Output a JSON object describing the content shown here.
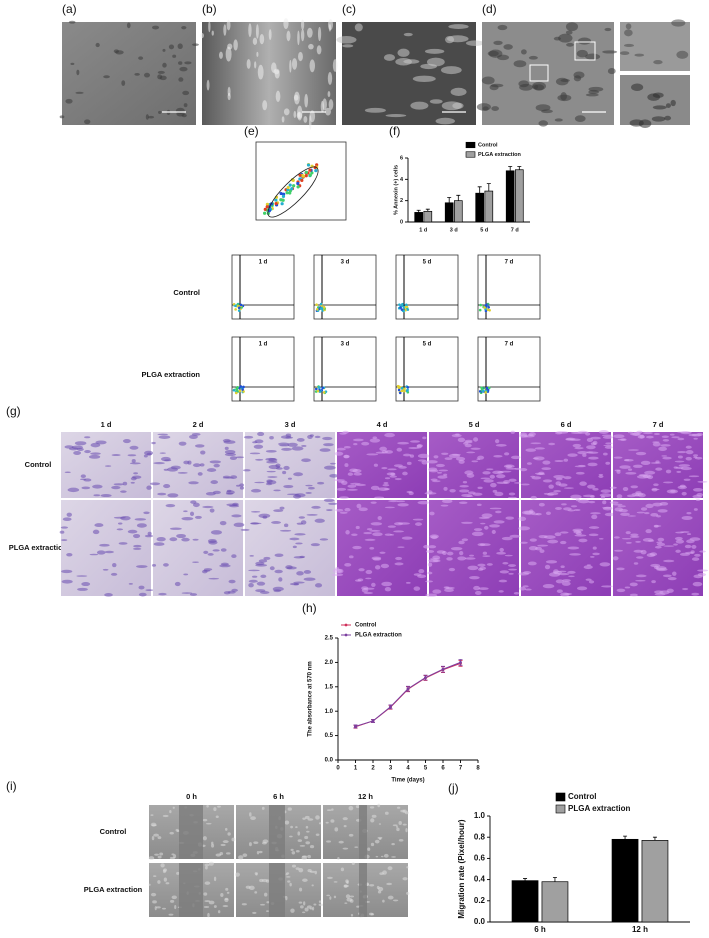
{
  "panel_labels": [
    "(a)",
    "(b)",
    "(c)",
    "(d)",
    "(e)",
    "(f)",
    "(g)",
    "(h)",
    "(i)",
    "(j)"
  ],
  "cytometry": {
    "columns": [
      "1 d",
      "3 d",
      "5 d",
      "7 d"
    ],
    "rows": [
      "Control",
      "PLGA extraction"
    ]
  },
  "crystal_violet": {
    "columns": [
      "1 d",
      "2 d",
      "3 d",
      "4 d",
      "5 d",
      "6 d",
      "7 d"
    ],
    "rows": [
      "Control",
      "PLGA extraction"
    ]
  },
  "scratch": {
    "columns": [
      "0 h",
      "6 h",
      "12 h"
    ],
    "rows": [
      "Control",
      "PLGA extraction"
    ]
  },
  "chart_data": [
    {
      "type": "bar",
      "y_label": "% Annexin (+) cells",
      "categories": [
        "1 d",
        "3 d",
        "5 d",
        "7 d"
      ],
      "series": [
        {
          "name": "Control",
          "color": "#000000",
          "values": [
            0.9,
            1.8,
            2.7,
            4.8
          ],
          "errors": [
            0.2,
            0.5,
            0.6,
            0.4
          ]
        },
        {
          "name": "PLGA extraction",
          "color": "#a0a0a0",
          "values": [
            1.0,
            2.0,
            2.9,
            4.9
          ],
          "errors": [
            0.2,
            0.5,
            0.7,
            0.3
          ]
        }
      ],
      "ylim": [
        0,
        6
      ],
      "yticks": [
        0,
        2,
        4,
        6
      ]
    },
    {
      "type": "line",
      "x_label": "Time (days)",
      "y_label": "The absorbance at 570 nm",
      "x": [
        1,
        2,
        3,
        4,
        5,
        6,
        7
      ],
      "series": [
        {
          "name": "Control",
          "color": "#d0305a",
          "values": [
            0.68,
            0.8,
            1.08,
            1.45,
            1.68,
            1.85,
            1.98
          ],
          "errors": [
            0.03,
            0.03,
            0.04,
            0.05,
            0.05,
            0.06,
            0.06
          ]
        },
        {
          "name": "PLGA extraction",
          "color": "#7b3fa0",
          "values": [
            0.69,
            0.8,
            1.09,
            1.46,
            1.69,
            1.86,
            2.0
          ],
          "errors": [
            0.03,
            0.03,
            0.04,
            0.05,
            0.05,
            0.06,
            0.06
          ]
        }
      ],
      "xlim": [
        0,
        8
      ],
      "xticks": [
        0,
        1,
        2,
        3,
        4,
        5,
        6,
        7,
        8
      ],
      "ylim": [
        0,
        2.5
      ],
      "yticks": [
        {
          "value": 0,
          "label": "0.0"
        },
        0.5,
        {
          "value": 1,
          "label": "1.0"
        },
        1.5,
        {
          "value": 2,
          "label": "2.0"
        },
        2.5
      ]
    },
    {
      "type": "bar",
      "y_label": "Migration rate (Pixel/hour)",
      "categories": [
        "6 h",
        "12 h"
      ],
      "series": [
        {
          "name": "Control",
          "color": "#000000",
          "values": [
            0.39,
            0.78
          ],
          "errors": [
            0.02,
            0.03
          ]
        },
        {
          "name": "PLGA extraction",
          "color": "#a0a0a0",
          "values": [
            0.38,
            0.77
          ],
          "errors": [
            0.04,
            0.03
          ]
        }
      ],
      "ylim": [
        0,
        1
      ],
      "yticks": [
        {
          "value": 0,
          "label": "0.0"
        },
        0.2,
        0.4,
        0.6,
        0.8,
        {
          "value": 1,
          "label": "1.0"
        }
      ]
    }
  ]
}
